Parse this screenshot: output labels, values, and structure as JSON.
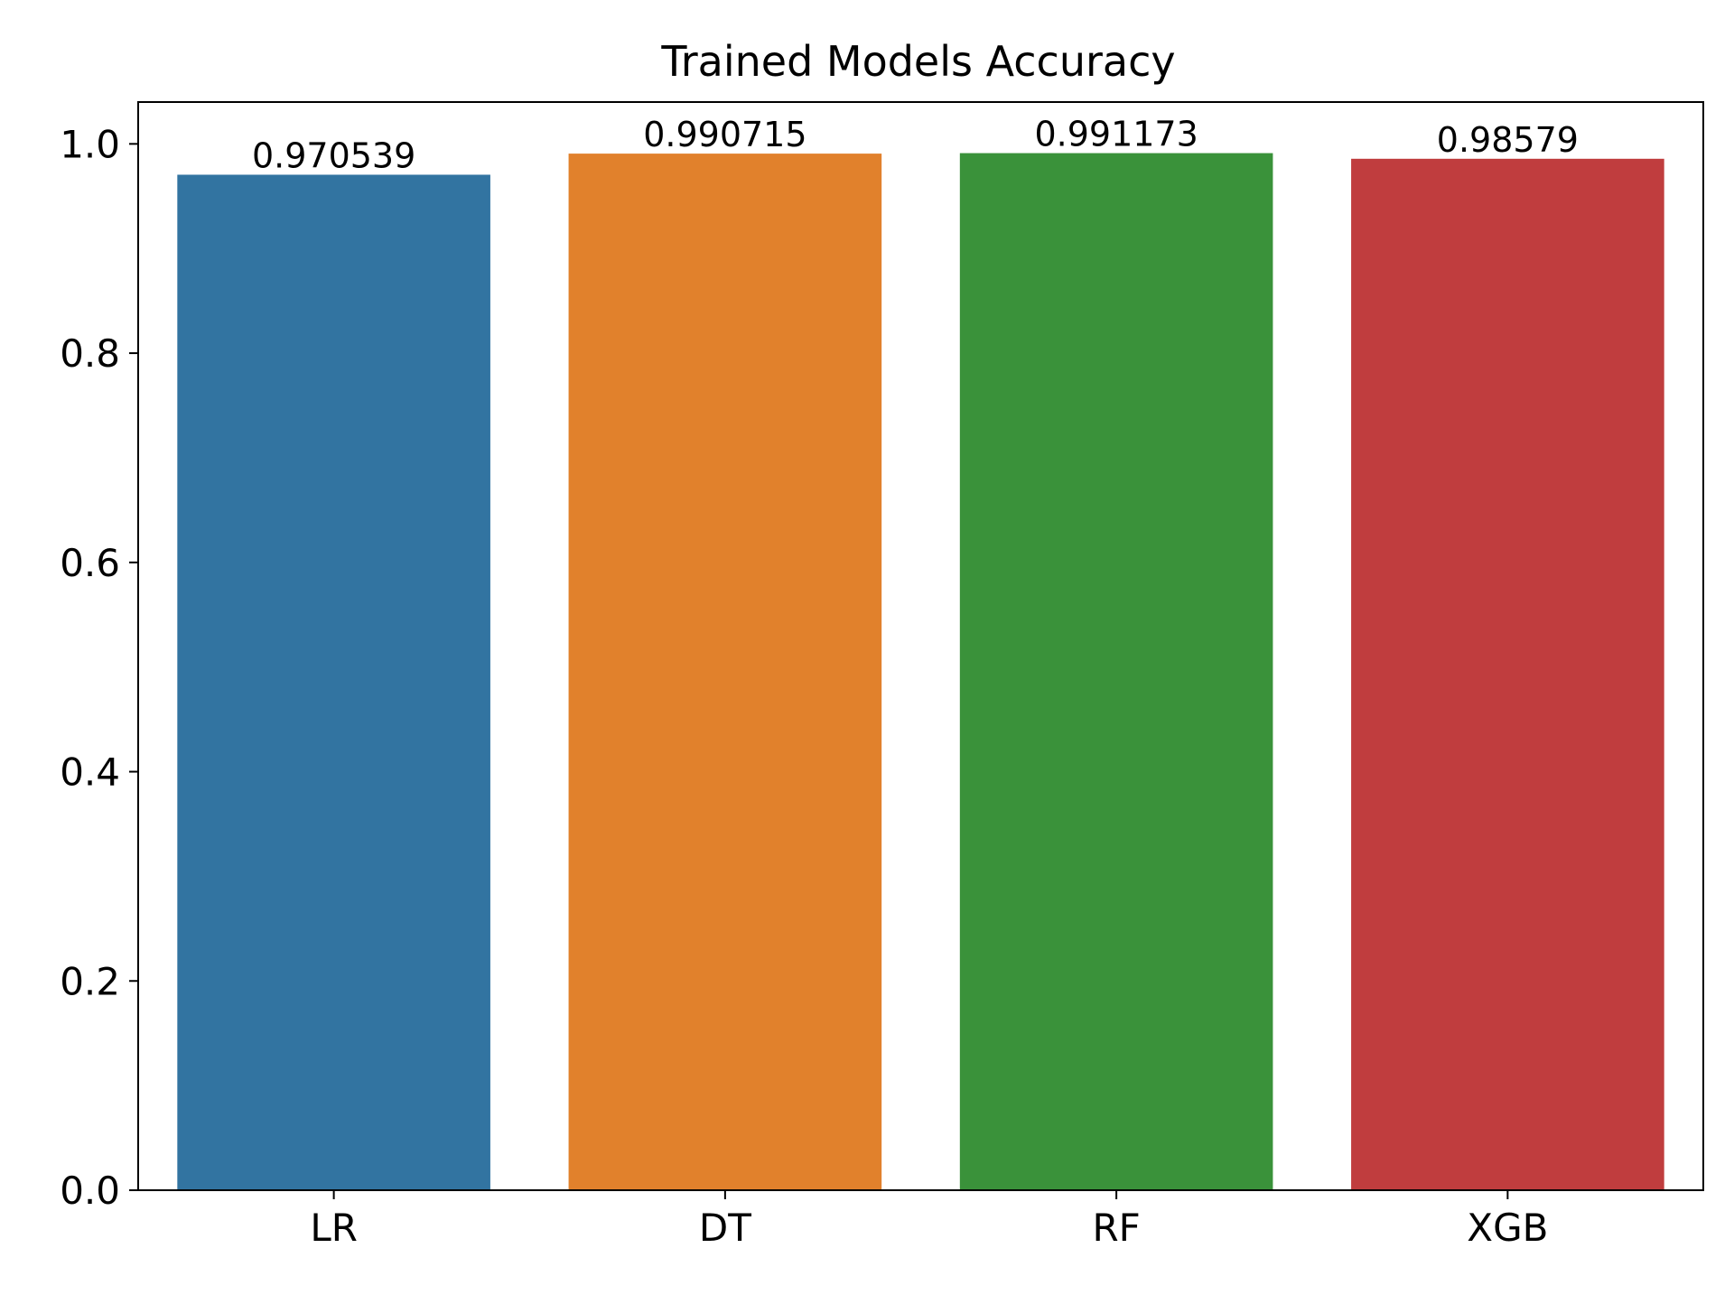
{
  "chart_data": {
    "type": "bar",
    "title": "Trained Models Accuracy",
    "xlabel": "",
    "ylabel": "",
    "categories": [
      "LR",
      "DT",
      "RF",
      "XGB"
    ],
    "values": [
      0.970539,
      0.990715,
      0.991173,
      0.98579
    ],
    "value_labels": [
      "0.970539",
      "0.990715",
      "0.991173",
      "0.98579"
    ],
    "colors": [
      "#3274a1",
      "#e1812c",
      "#3a923a",
      "#c03d3e"
    ],
    "ylim": [
      0,
      1.04
    ],
    "yticks": [
      0.0,
      0.2,
      0.4,
      0.6,
      0.8,
      1.0
    ],
    "ytick_labels": [
      "0.0",
      "0.2",
      "0.4",
      "0.6",
      "0.8",
      "1.0"
    ],
    "grid": false,
    "legend": "none"
  }
}
